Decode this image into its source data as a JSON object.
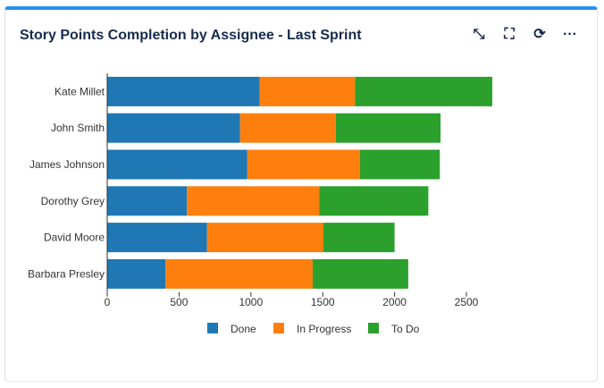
{
  "header": {
    "title": "Story Points Completion by Assignee - Last Sprint",
    "icons": [
      "minimize-icon",
      "fullscreen-icon",
      "refresh-icon",
      "more-icon"
    ]
  },
  "chart_data": {
    "type": "bar",
    "orientation": "horizontal",
    "stacked": true,
    "categories": [
      "Kate Millet",
      "John Smith",
      "James Johnson",
      "Dorothy Grey",
      "David Moore",
      "Barbara Presley"
    ],
    "series": [
      {
        "name": "Done",
        "color": "#1f77b4",
        "values": [
          1060,
          925,
          975,
          555,
          695,
          405
        ]
      },
      {
        "name": "In Progress",
        "color": "#ff7f0e",
        "values": [
          665,
          665,
          785,
          920,
          810,
          1025
        ]
      },
      {
        "name": "To Do",
        "color": "#2ca02c",
        "values": [
          955,
          730,
          555,
          760,
          495,
          665
        ]
      }
    ],
    "xticks": [
      "0",
      "500",
      "1000",
      "1500",
      "2000",
      "2500"
    ],
    "xlim": [
      0,
      2700
    ],
    "grid": false,
    "legend": "bottom"
  }
}
